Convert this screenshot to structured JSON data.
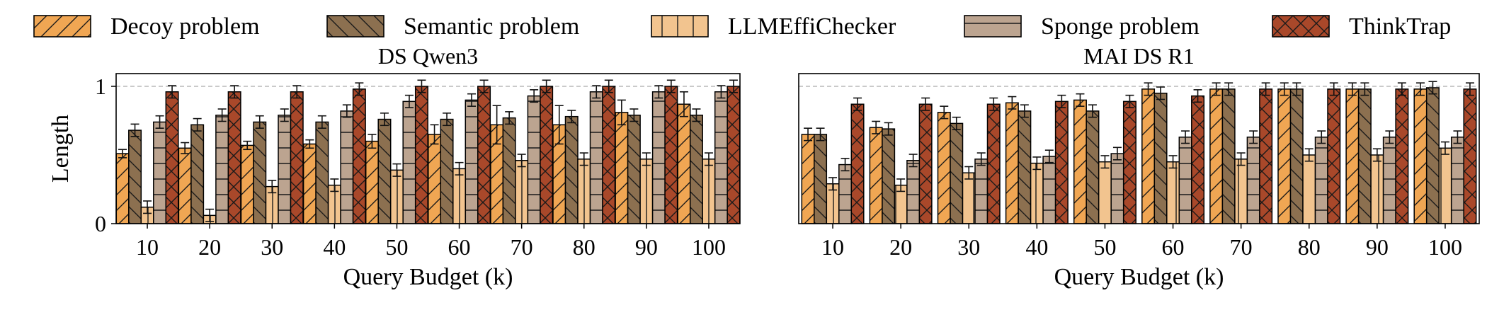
{
  "legend": [
    {
      "label": "Decoy problem",
      "color": "#F0A653",
      "hatch": "diag"
    },
    {
      "label": "Semantic problem",
      "color": "#8C7050",
      "hatch": "back"
    },
    {
      "label": "LLMEffiChecker",
      "color": "#F2C48F",
      "hatch": "vert"
    },
    {
      "label": "Sponge problem",
      "color": "#BCA490",
      "hatch": "horiz"
    },
    {
      "label": "ThinkTrap",
      "color": "#A9482A",
      "hatch": "cross"
    }
  ],
  "chart_data": [
    {
      "type": "bar",
      "title": "DS Qwen3",
      "xlabel": "Query Budget (k)",
      "ylabel": "Length",
      "ylim": [
        0,
        1
      ],
      "yticks": [
        "0",
        "1"
      ],
      "grid": "dashed line at 1",
      "categories": [
        "10",
        "20",
        "30",
        "40",
        "50",
        "60",
        "70",
        "80",
        "90",
        "100"
      ],
      "series": [
        {
          "name": "Decoy problem",
          "values": [
            0.51,
            0.55,
            0.57,
            0.58,
            0.6,
            0.65,
            0.72,
            0.72,
            0.81,
            0.87
          ],
          "err": [
            0.03,
            0.04,
            0.03,
            0.03,
            0.05,
            0.07,
            0.14,
            0.14,
            0.09,
            0.09
          ]
        },
        {
          "name": "Semantic problem",
          "values": [
            0.68,
            0.72,
            0.74,
            0.74,
            0.76,
            0.76,
            0.77,
            0.78,
            0.79,
            0.79
          ]
        },
        {
          "name": "LLMEffiChecker",
          "values": [
            0.12,
            0.06,
            0.27,
            0.28,
            0.39,
            0.4,
            0.46,
            0.47,
            0.47,
            0.47
          ]
        },
        {
          "name": "Sponge problem",
          "values": [
            0.74,
            0.79,
            0.79,
            0.82,
            0.89,
            0.9,
            0.93,
            0.96,
            0.96,
            0.96
          ]
        },
        {
          "name": "ThinkTrap",
          "values": [
            0.96,
            0.96,
            0.96,
            0.98,
            1.0,
            1.0,
            1.0,
            1.0,
            1.0,
            1.0
          ]
        }
      ]
    },
    {
      "type": "bar",
      "title": "MAI DS R1",
      "xlabel": "Query Budget (k)",
      "ylabel": "",
      "ylim": [
        0,
        1
      ],
      "grid": "dashed line at 1",
      "categories": [
        "10",
        "20",
        "30",
        "40",
        "50",
        "60",
        "70",
        "80",
        "90",
        "100"
      ],
      "series": [
        {
          "name": "Decoy problem",
          "values": [
            0.65,
            0.7,
            0.81,
            0.88,
            0.9,
            0.98,
            0.98,
            0.98,
            0.98,
            0.98
          ]
        },
        {
          "name": "Semantic problem",
          "values": [
            0.65,
            0.69,
            0.73,
            0.82,
            0.82,
            0.95,
            0.98,
            0.98,
            0.98,
            0.99
          ]
        },
        {
          "name": "LLMEffiChecker",
          "values": [
            0.29,
            0.28,
            0.37,
            0.44,
            0.45,
            0.45,
            0.47,
            0.5,
            0.5,
            0.55
          ]
        },
        {
          "name": "Sponge problem",
          "values": [
            0.43,
            0.46,
            0.47,
            0.49,
            0.51,
            0.63,
            0.63,
            0.63,
            0.63,
            0.63
          ]
        },
        {
          "name": "ThinkTrap",
          "values": [
            0.87,
            0.87,
            0.87,
            0.89,
            0.89,
            0.93,
            0.98,
            0.98,
            0.98,
            0.98
          ]
        }
      ]
    }
  ]
}
